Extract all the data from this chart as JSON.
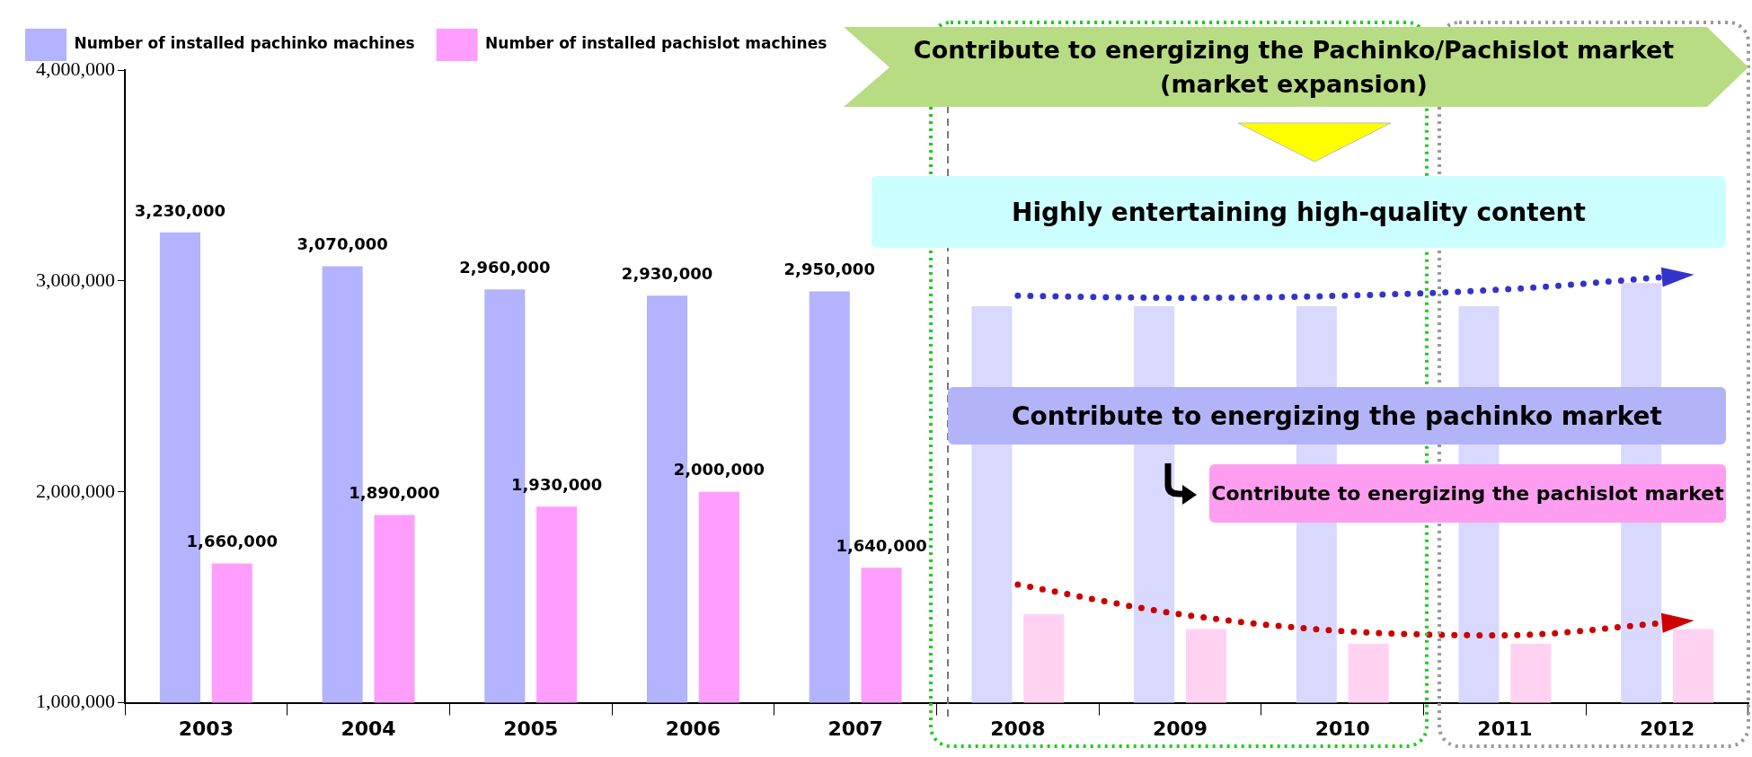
{
  "chart_data": {
    "type": "bar",
    "categories": [
      "2003",
      "2004",
      "2005",
      "2006",
      "2007",
      "2008",
      "2009",
      "2010",
      "2011",
      "2012"
    ],
    "series": [
      {
        "name": "Number of installed pachinko machines",
        "color": "#b3b3ff",
        "colors": [
          "#b3b3ff",
          "#b3b3ff",
          "#b3b3ff",
          "#b3b3ff",
          "#b3b3ff",
          "#d9d9ff",
          "#d9d9ff",
          "#d9d9ff",
          "#d9d9ff",
          "#d9d9ff"
        ],
        "values": [
          3230000,
          3070000,
          2960000,
          2930000,
          2950000,
          2880000,
          2880000,
          2880000,
          2880000,
          2990000
        ],
        "value_labels": [
          "3,230,000",
          "3,070,000",
          "2,960,000",
          "2,930,000",
          "2,950,000",
          null,
          null,
          null,
          null,
          null
        ]
      },
      {
        "name": "Number of installed pachislot machines",
        "color": "#ff9eff",
        "colors": [
          "#ff9eff",
          "#ff9eff",
          "#ff9eff",
          "#ff9eff",
          "#ff9eff",
          "#ffd2f2",
          "#ffd2f2",
          "#ffd2f2",
          "#ffd2f2",
          "#ffd2f2"
        ],
        "values": [
          1660000,
          1890000,
          1930000,
          2000000,
          1640000,
          1420000,
          1350000,
          1280000,
          1280000,
          1350000
        ],
        "value_labels": [
          "1,660,000",
          "1,890,000",
          "1,930,000",
          "2,000,000",
          "1,640,000",
          null,
          null,
          null,
          null,
          null
        ]
      },
      {
        "type": "line",
        "color": "#3333cc",
        "line_style": "dotted",
        "marker": "none",
        "values": [
          null,
          null,
          null,
          null,
          null,
          2930000,
          2920000,
          2930000,
          2960000,
          3020000
        ]
      },
      {
        "type": "line",
        "color": "#cc0000",
        "line_style": "dotted",
        "marker": "none",
        "values": [
          null,
          null,
          null,
          null,
          null,
          1560000,
          1420000,
          1340000,
          1320000,
          1380000
        ]
      }
    ],
    "ylim": [
      1000000,
      4000000
    ],
    "yticks": [
      {
        "value": 1000000,
        "label": "1,000,000"
      },
      {
        "value": 2000000,
        "label": "2,000,000"
      },
      {
        "value": 3000000,
        "label": "3,000,000"
      },
      {
        "value": 4000000,
        "label": "4,000,000"
      }
    ],
    "grid": false,
    "legend": "top left",
    "annotations": [
      "Contribute to energizing the Pachinko/Pachislot market (market expansion)",
      "Highly entertaining high-quality content",
      "Contribute to energizing the pachinko market",
      "Contribute to energizing the pachislot market"
    ]
  }
}
